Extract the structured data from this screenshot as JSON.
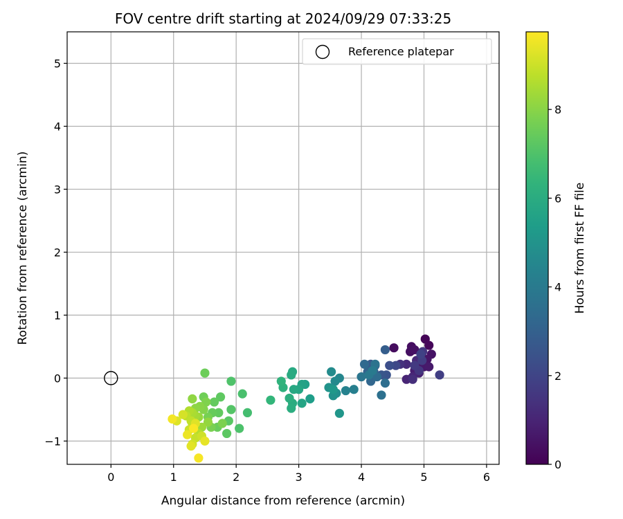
{
  "chart_data": {
    "type": "scatter",
    "title": "FOV centre drift starting at 2024/09/29 07:33:25",
    "xlabel": "Angular distance from reference (arcmin)",
    "ylabel": "Rotation from reference (arcmin)",
    "xlim": [
      -0.7,
      6.2
    ],
    "ylim": [
      -1.37,
      5.5
    ],
    "xticks": [
      0,
      1,
      2,
      3,
      4,
      5,
      6
    ],
    "yticks": [
      -1,
      0,
      1,
      2,
      3,
      4,
      5
    ],
    "xtick_labels": [
      "0",
      "1",
      "2",
      "3",
      "4",
      "5",
      "6"
    ],
    "ytick_labels": [
      "−1",
      "0",
      "1",
      "2",
      "3",
      "4",
      "5"
    ],
    "grid": true,
    "legend": {
      "position": "top-right",
      "entries": [
        "Reference platepar"
      ]
    },
    "reference_point": {
      "x": 0,
      "y": 0
    },
    "colorbar": {
      "label": "Hours from first FF file",
      "min": 0,
      "max": 9.75,
      "ticks": [
        0,
        2,
        4,
        6,
        8
      ],
      "tick_labels": [
        "0",
        "2",
        "4",
        "6",
        "8"
      ],
      "colormap": "viridis"
    },
    "points": [
      {
        "x": 5.02,
        "y": 0.62,
        "h": 0.1
      },
      {
        "x": 5.08,
        "y": 0.52,
        "h": 0.15
      },
      {
        "x": 4.52,
        "y": 0.48,
        "h": 0.3
      },
      {
        "x": 4.8,
        "y": 0.5,
        "h": 0.35
      },
      {
        "x": 4.78,
        "y": 0.42,
        "h": 0.4
      },
      {
        "x": 4.85,
        "y": 0.45,
        "h": 0.45
      },
      {
        "x": 5.12,
        "y": 0.38,
        "h": 0.5
      },
      {
        "x": 5.05,
        "y": 0.3,
        "h": 0.55
      },
      {
        "x": 4.9,
        "y": 0.22,
        "h": 0.6
      },
      {
        "x": 5.0,
        "y": 0.18,
        "h": 0.65
      },
      {
        "x": 5.08,
        "y": 0.18,
        "h": 0.7
      },
      {
        "x": 4.85,
        "y": 0.12,
        "h": 0.8
      },
      {
        "x": 4.92,
        "y": 0.08,
        "h": 0.9
      },
      {
        "x": 4.72,
        "y": -0.02,
        "h": 1.0
      },
      {
        "x": 4.82,
        "y": 0.02,
        "h": 1.05
      },
      {
        "x": 4.88,
        "y": 0.28,
        "h": 1.1
      },
      {
        "x": 4.72,
        "y": 0.22,
        "h": 1.15
      },
      {
        "x": 4.82,
        "y": -0.02,
        "h": 1.3
      },
      {
        "x": 4.62,
        "y": 0.22,
        "h": 1.4
      },
      {
        "x": 4.98,
        "y": 0.42,
        "h": 1.5
      },
      {
        "x": 4.92,
        "y": 0.12,
        "h": 1.55
      },
      {
        "x": 4.85,
        "y": 0.2,
        "h": 1.65
      },
      {
        "x": 4.97,
        "y": 0.28,
        "h": 1.75
      },
      {
        "x": 5.25,
        "y": 0.05,
        "h": 1.8
      },
      {
        "x": 4.95,
        "y": 0.38,
        "h": 1.9
      },
      {
        "x": 4.55,
        "y": 0.2,
        "h": 2.1
      },
      {
        "x": 4.45,
        "y": 0.2,
        "h": 2.3
      },
      {
        "x": 4.4,
        "y": 0.05,
        "h": 2.5
      },
      {
        "x": 4.32,
        "y": 0.05,
        "h": 2.6
      },
      {
        "x": 4.15,
        "y": 0.22,
        "h": 2.7
      },
      {
        "x": 4.2,
        "y": 0.1,
        "h": 2.8
      },
      {
        "x": 4.38,
        "y": 0.45,
        "h": 2.9
      },
      {
        "x": 4.22,
        "y": 0.2,
        "h": 3.0
      },
      {
        "x": 4.1,
        "y": 0.1,
        "h": 3.1
      },
      {
        "x": 4.15,
        "y": -0.05,
        "h": 3.2
      },
      {
        "x": 4.05,
        "y": 0.22,
        "h": 3.3
      },
      {
        "x": 4.25,
        "y": 0.02,
        "h": 3.4
      },
      {
        "x": 4.38,
        "y": -0.08,
        "h": 3.5
      },
      {
        "x": 4.32,
        "y": -0.27,
        "h": 3.6
      },
      {
        "x": 4.22,
        "y": 0.22,
        "h": 3.7
      },
      {
        "x": 4.0,
        "y": 0.02,
        "h": 3.8
      },
      {
        "x": 4.12,
        "y": 0.05,
        "h": 3.9
      },
      {
        "x": 4.18,
        "y": 0.12,
        "h": 4.0
      },
      {
        "x": 3.88,
        "y": -0.18,
        "h": 4.2
      },
      {
        "x": 3.75,
        "y": -0.2,
        "h": 4.35
      },
      {
        "x": 3.65,
        "y": 0.0,
        "h": 4.5
      },
      {
        "x": 3.58,
        "y": -0.05,
        "h": 4.6
      },
      {
        "x": 3.52,
        "y": 0.1,
        "h": 4.7
      },
      {
        "x": 3.6,
        "y": -0.24,
        "h": 4.8
      },
      {
        "x": 3.55,
        "y": -0.28,
        "h": 4.9
      },
      {
        "x": 3.48,
        "y": -0.15,
        "h": 5.0
      },
      {
        "x": 3.65,
        "y": -0.56,
        "h": 5.1
      },
      {
        "x": 3.55,
        "y": -0.18,
        "h": 5.2
      },
      {
        "x": 3.18,
        "y": -0.33,
        "h": 5.4
      },
      {
        "x": 3.1,
        "y": -0.1,
        "h": 5.5
      },
      {
        "x": 3.05,
        "y": -0.1,
        "h": 5.6
      },
      {
        "x": 3.05,
        "y": -0.4,
        "h": 5.7
      },
      {
        "x": 3.0,
        "y": -0.18,
        "h": 5.75
      },
      {
        "x": 2.92,
        "y": -0.18,
        "h": 5.85
      },
      {
        "x": 2.9,
        "y": 0.1,
        "h": 5.9
      },
      {
        "x": 2.88,
        "y": 0.05,
        "h": 5.95
      },
      {
        "x": 2.9,
        "y": -0.4,
        "h": 6.0
      },
      {
        "x": 2.88,
        "y": -0.48,
        "h": 6.05
      },
      {
        "x": 2.85,
        "y": -0.32,
        "h": 6.1
      },
      {
        "x": 2.75,
        "y": -0.15,
        "h": 6.2
      },
      {
        "x": 2.72,
        "y": -0.05,
        "h": 6.3
      },
      {
        "x": 2.55,
        "y": -0.35,
        "h": 6.4
      },
      {
        "x": 2.18,
        "y": -0.55,
        "h": 6.8
      },
      {
        "x": 2.1,
        "y": -0.25,
        "h": 6.9
      },
      {
        "x": 2.05,
        "y": -0.8,
        "h": 6.95
      },
      {
        "x": 1.92,
        "y": -0.05,
        "h": 7.0
      },
      {
        "x": 1.92,
        "y": -0.5,
        "h": 7.1
      },
      {
        "x": 1.88,
        "y": -0.68,
        "h": 7.2
      },
      {
        "x": 1.85,
        "y": -0.88,
        "h": 7.25
      },
      {
        "x": 1.75,
        "y": -0.3,
        "h": 7.3
      },
      {
        "x": 1.72,
        "y": -0.55,
        "h": 7.35
      },
      {
        "x": 1.65,
        "y": -0.38,
        "h": 7.4
      },
      {
        "x": 1.62,
        "y": -0.55,
        "h": 7.45
      },
      {
        "x": 1.7,
        "y": -0.78,
        "h": 7.5
      },
      {
        "x": 1.5,
        "y": 0.08,
        "h": 7.55
      },
      {
        "x": 1.48,
        "y": -0.3,
        "h": 7.6
      },
      {
        "x": 1.55,
        "y": -0.62,
        "h": 7.7
      },
      {
        "x": 1.6,
        "y": -0.78,
        "h": 7.75
      },
      {
        "x": 1.78,
        "y": -0.72,
        "h": 7.8
      },
      {
        "x": 1.52,
        "y": -0.38,
        "h": 7.85
      },
      {
        "x": 1.48,
        "y": -0.5,
        "h": 7.9
      },
      {
        "x": 1.42,
        "y": -0.45,
        "h": 8.0
      },
      {
        "x": 1.35,
        "y": -0.48,
        "h": 8.05
      },
      {
        "x": 1.3,
        "y": -0.33,
        "h": 8.1
      },
      {
        "x": 1.55,
        "y": -0.7,
        "h": 8.15
      },
      {
        "x": 1.4,
        "y": -0.62,
        "h": 8.2
      },
      {
        "x": 1.45,
        "y": -0.78,
        "h": 8.3
      },
      {
        "x": 1.35,
        "y": -0.6,
        "h": 8.4
      },
      {
        "x": 1.3,
        "y": -0.55,
        "h": 8.5
      },
      {
        "x": 1.25,
        "y": -0.52,
        "h": 8.6
      },
      {
        "x": 1.4,
        "y": -0.88,
        "h": 8.65
      },
      {
        "x": 1.3,
        "y": -0.72,
        "h": 8.7
      },
      {
        "x": 1.2,
        "y": -0.6,
        "h": 8.8
      },
      {
        "x": 1.28,
        "y": -0.68,
        "h": 8.85
      },
      {
        "x": 1.35,
        "y": -0.95,
        "h": 8.9
      },
      {
        "x": 1.25,
        "y": -0.82,
        "h": 9.0
      },
      {
        "x": 1.45,
        "y": -0.92,
        "h": 9.05
      },
      {
        "x": 1.3,
        "y": -1.05,
        "h": 9.1
      },
      {
        "x": 1.15,
        "y": -0.58,
        "h": 9.15
      },
      {
        "x": 1.05,
        "y": -0.68,
        "h": 9.25
      },
      {
        "x": 1.35,
        "y": -0.72,
        "h": 9.3
      },
      {
        "x": 1.28,
        "y": -1.08,
        "h": 9.35
      },
      {
        "x": 1.5,
        "y": -1.0,
        "h": 9.4
      },
      {
        "x": 1.22,
        "y": -0.9,
        "h": 9.5
      },
      {
        "x": 0.98,
        "y": -0.65,
        "h": 9.6
      },
      {
        "x": 1.4,
        "y": -1.27,
        "h": 9.65
      },
      {
        "x": 1.32,
        "y": -0.8,
        "h": 9.7
      }
    ]
  }
}
